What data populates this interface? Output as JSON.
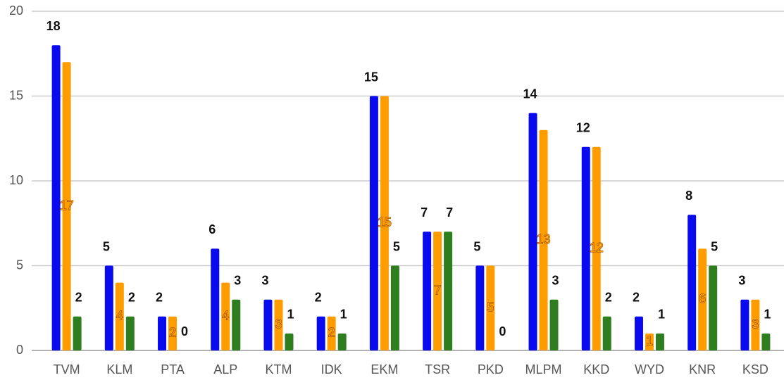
{
  "chart_data": {
    "type": "bar",
    "categories": [
      "TVM",
      "KLM",
      "PTA",
      "ALP",
      "KTM",
      "IDK",
      "EKM",
      "TSR",
      "PKD",
      "MLPM",
      "KKD",
      "WYD",
      "KNR",
      "KSD"
    ],
    "series": [
      {
        "color": "#0a0aee",
        "values": [
          18,
          5,
          2,
          6,
          3,
          2,
          15,
          7,
          5,
          14,
          12,
          2,
          8,
          3
        ]
      },
      {
        "color": "#ff9d00",
        "values": [
          17,
          4,
          2,
          4,
          3,
          2,
          15,
          7,
          5,
          13,
          12,
          1,
          6,
          3
        ]
      },
      {
        "color": "#2e7d1f",
        "values": [
          2,
          2,
          0,
          3,
          1,
          1,
          5,
          7,
          0,
          3,
          2,
          1,
          5,
          1
        ]
      }
    ],
    "ylim": [
      0,
      20
    ],
    "yticks": [
      0,
      5,
      10,
      15,
      20
    ],
    "grid": true
  }
}
